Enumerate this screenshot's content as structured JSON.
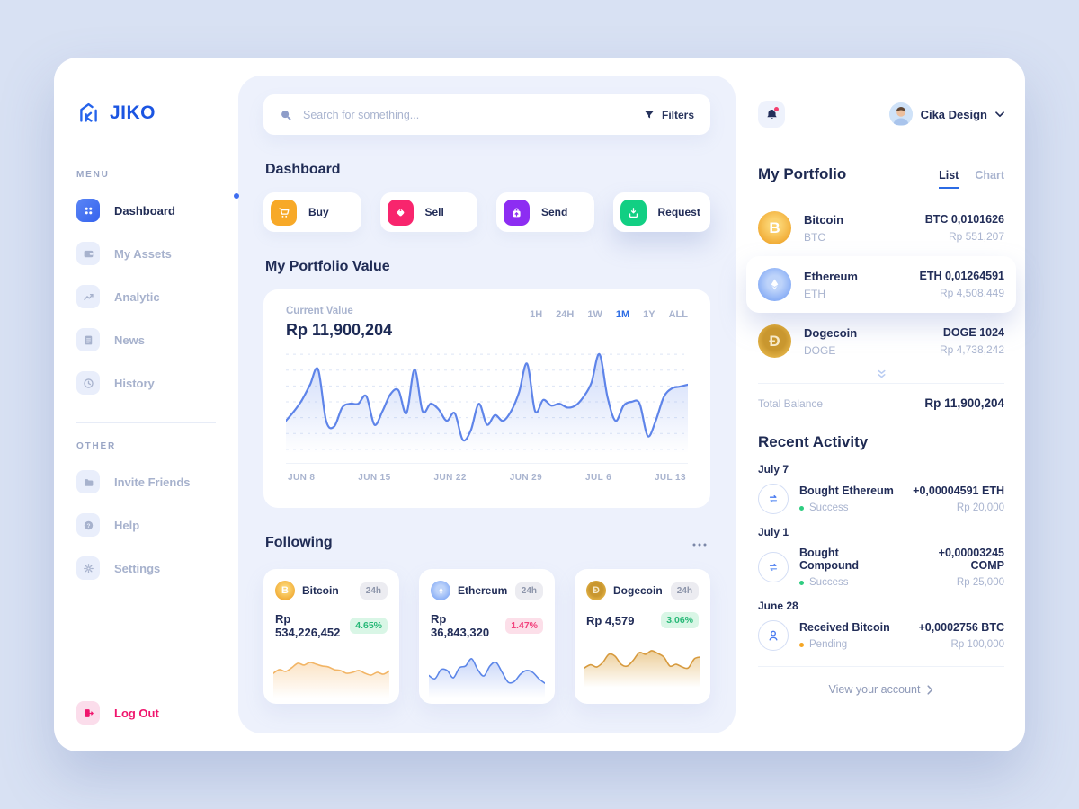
{
  "brand": {
    "name": "JIKO",
    "accent": "#1b55e2"
  },
  "sidebar": {
    "menu_label": "MENU",
    "other_label": "OTHER",
    "menu": [
      {
        "label": "Dashboard",
        "icon": "grid-icon",
        "active": true
      },
      {
        "label": "My Assets",
        "icon": "wallet-icon"
      },
      {
        "label": "Analytic",
        "icon": "chart-icon"
      },
      {
        "label": "News",
        "icon": "news-icon"
      },
      {
        "label": "History",
        "icon": "history-icon"
      }
    ],
    "other": [
      {
        "label": "Invite Friends",
        "icon": "folder-icon"
      },
      {
        "label": "Help",
        "icon": "help-icon"
      },
      {
        "label": "Settings",
        "icon": "gear-icon"
      }
    ],
    "logout_label": "Log Out",
    "logout_color": "#f0156d"
  },
  "search": {
    "placeholder": "Search for something...",
    "filters_label": "Filters"
  },
  "main": {
    "title": "Dashboard",
    "actions": [
      {
        "label": "Buy",
        "icon": "cart-icon",
        "color": "#f7a928"
      },
      {
        "label": "Sell",
        "icon": "tag-icon",
        "color": "#f8256d"
      },
      {
        "label": "Send",
        "icon": "bag-up-icon",
        "color": "#8d2df2"
      },
      {
        "label": "Request",
        "icon": "tray-down-icon",
        "color": "#12cf83"
      }
    ],
    "portfolio_value": {
      "title": "My Portfolio Value",
      "current_value_label": "Current Value",
      "current_value": "Rp 11,900,204",
      "ranges": [
        "1H",
        "24H",
        "1W",
        "1M",
        "1Y",
        "ALL"
      ],
      "active_range": "1M"
    },
    "following": {
      "title": "Following",
      "cards": [
        {
          "name": "Bitcoin",
          "period": "24h",
          "price": "Rp 534,226,452",
          "change": "4.65%",
          "trend": "up"
        },
        {
          "name": "Ethereum",
          "period": "24h",
          "price": "Rp 36,843,320",
          "change": "1.47%",
          "trend": "down"
        },
        {
          "name": "Dogecoin",
          "period": "24h",
          "price": "Rp 4,579",
          "change": "3.06%",
          "trend": "up"
        }
      ]
    }
  },
  "right": {
    "user": {
      "name": "Cika Design"
    },
    "portfolio": {
      "title": "My Portfolio",
      "tabs": [
        "List",
        "Chart"
      ],
      "active_tab": "List",
      "assets": [
        {
          "name": "Bitcoin",
          "symbol": "BTC",
          "amount": "BTC 0,0101626",
          "value": "Rp 551,207",
          "highlighted": false
        },
        {
          "name": "Ethereum",
          "symbol": "ETH",
          "amount": "ETH 0,01264591",
          "value": "Rp 4,508,449",
          "highlighted": true
        },
        {
          "name": "Dogecoin",
          "symbol": "DOGE",
          "amount": "DOGE 1024",
          "value": "Rp 4,738,242",
          "highlighted": false
        }
      ],
      "total_balance_label": "Total Balance",
      "total_balance": "Rp 11,900,204"
    },
    "activity": {
      "title": "Recent Activity",
      "groups": [
        {
          "date": "July 7",
          "title": "Bought Ethereum",
          "status": "Success",
          "amount": "+0,00004591 ETH",
          "value": "Rp 20,000",
          "icon": "exchange-icon"
        },
        {
          "date": "July 1",
          "title": "Bought Compound",
          "status": "Success",
          "amount": "+0,00003245 COMP",
          "value": "Rp 25,000",
          "icon": "exchange-icon"
        },
        {
          "date": "June 28",
          "title": "Received Bitcoin",
          "status": "Pending",
          "amount": "+0,0002756 BTC",
          "value": "Rp 100,000",
          "icon": "person-icon"
        }
      ],
      "status_colors": {
        "Success": "#2ecc80",
        "Pending": "#f5a623"
      }
    },
    "footer_link": "View your account"
  },
  "chart_data": [
    {
      "id": "portfolio_value",
      "type": "area",
      "title": "My Portfolio Value (1M)",
      "x_labels": [
        "JUN 8",
        "JUN 15",
        "JUN 22",
        "JUN 29",
        "JUL 6",
        "JUL 13"
      ],
      "values": [
        30,
        40,
        52,
        68,
        84,
        30,
        24,
        44,
        48,
        48,
        56,
        26,
        40,
        58,
        62,
        38,
        84,
        40,
        48,
        42,
        30,
        38,
        10,
        20,
        48,
        26,
        36,
        30,
        40,
        60,
        90,
        40,
        52,
        46,
        48,
        44,
        46,
        55,
        70,
        100,
        55,
        30,
        46,
        50,
        48,
        14,
        30,
        55,
        64,
        66,
        68
      ],
      "ylim": [
        0,
        100
      ],
      "grid_lines": 7,
      "stroke": "#5e84e9",
      "fill": "#7e9ef0",
      "fill_opacity": 0.38,
      "line_width": 2.2
    },
    {
      "id": "bitcoin_spark",
      "type": "area",
      "title": "Bitcoin 24h",
      "values": [
        50,
        58,
        54,
        62,
        72,
        68,
        74,
        70,
        66,
        64,
        58,
        56,
        50,
        52,
        56,
        50,
        46,
        52,
        48,
        55
      ],
      "stroke": "#f2b566",
      "fill": "#f5ba70",
      "fill_opacity": 0.4,
      "line_width": 1.6
    },
    {
      "id": "ethereum_spark",
      "type": "area",
      "title": "Ethereum 24h",
      "values": [
        45,
        38,
        58,
        56,
        40,
        62,
        66,
        82,
        58,
        44,
        66,
        74,
        52,
        30,
        32,
        48,
        56,
        52,
        38,
        28
      ],
      "stroke": "#5c86e8",
      "fill": "#7e9ef0",
      "fill_opacity": 0.42,
      "line_width": 1.6
    },
    {
      "id": "dogecoin_spark",
      "type": "area",
      "title": "Dogecoin 24h",
      "values": [
        38,
        45,
        40,
        50,
        68,
        64,
        46,
        42,
        55,
        72,
        68,
        76,
        70,
        62,
        42,
        46,
        40,
        38,
        58,
        62
      ],
      "stroke": "#d79a3d",
      "fill": "#dda646",
      "fill_opacity": 0.55,
      "line_width": 1.6
    }
  ]
}
